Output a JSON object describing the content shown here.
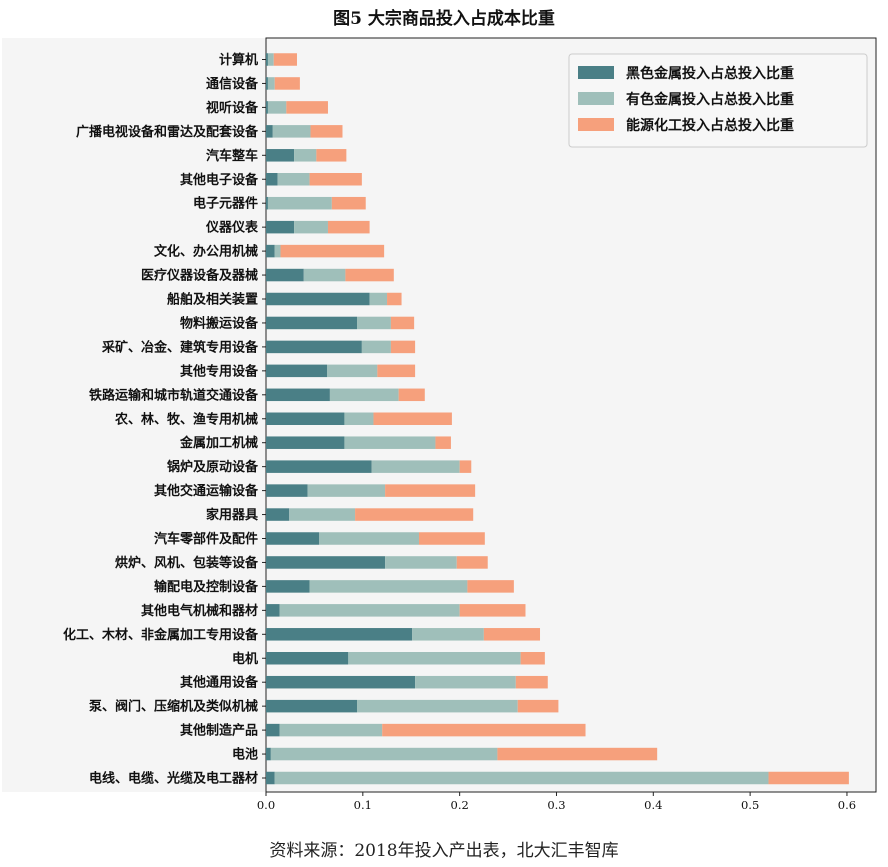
{
  "title": "图5 大宗商品投入占成本比重",
  "source": "资料来源：2018年投入产出表，北大汇丰智库",
  "chart_data": {
    "type": "bar",
    "orientation": "horizontal",
    "stacked": true,
    "categories": [
      "计算机",
      "通信设备",
      "视听设备",
      "广播电视设备和雷达及配套设备",
      "汽车整车",
      "其他电子设备",
      "电子元器件",
      "仪器仪表",
      "文化、办公用机械",
      "医疗仪器设备及器械",
      "船舶及相关装置",
      "物料搬运设备",
      "采矿、冶金、建筑专用设备",
      "其他专用设备",
      "铁路运输和城市轨道交通设备",
      "农、林、牧、渔专用机械",
      "金属加工机械",
      "锅炉及原动设备",
      "其他交通运输设备",
      "家用器具",
      "汽车零部件及配件",
      "烘炉、风机、包装等设备",
      "输配电及控制设备",
      "其他电气机械和器材",
      "化工、木材、非金属加工专用设备",
      "电机",
      "其他通用设备",
      "泵、阀门、压缩机及类似机械",
      "其他制造产品",
      "电池",
      "电线、电缆、光缆及电工器材"
    ],
    "series": [
      {
        "name": "黑色金属投入占总投入比重",
        "color": "#4a7f86",
        "values": [
          0.002,
          0.002,
          0.002,
          0.007,
          0.029,
          0.012,
          0.002,
          0.029,
          0.009,
          0.039,
          0.107,
          0.094,
          0.099,
          0.063,
          0.066,
          0.081,
          0.081,
          0.109,
          0.043,
          0.024,
          0.055,
          0.123,
          0.045,
          0.014,
          0.151,
          0.085,
          0.154,
          0.094,
          0.014,
          0.005,
          0.009
        ]
      },
      {
        "name": "有色金属投入占总投入比重",
        "color": "#9fbfba",
        "values": [
          0.006,
          0.007,
          0.019,
          0.039,
          0.023,
          0.033,
          0.066,
          0.035,
          0.006,
          0.043,
          0.018,
          0.035,
          0.03,
          0.052,
          0.071,
          0.03,
          0.094,
          0.091,
          0.08,
          0.068,
          0.103,
          0.074,
          0.163,
          0.186,
          0.074,
          0.178,
          0.104,
          0.166,
          0.106,
          0.234,
          0.51
        ]
      },
      {
        "name": "能源化工投入占总投入比重",
        "color": "#f6a07c",
        "values": [
          0.024,
          0.026,
          0.043,
          0.033,
          0.031,
          0.054,
          0.035,
          0.043,
          0.107,
          0.05,
          0.015,
          0.024,
          0.025,
          0.039,
          0.027,
          0.081,
          0.016,
          0.012,
          0.093,
          0.122,
          0.068,
          0.032,
          0.048,
          0.068,
          0.058,
          0.025,
          0.033,
          0.042,
          0.21,
          0.165,
          0.083
        ]
      }
    ],
    "xlim": [
      0,
      0.63
    ],
    "xticks": [
      "0.0",
      "0.1",
      "0.2",
      "0.3",
      "0.4",
      "0.5",
      "0.6"
    ],
    "grid": false,
    "legend_position": "top-right"
  }
}
